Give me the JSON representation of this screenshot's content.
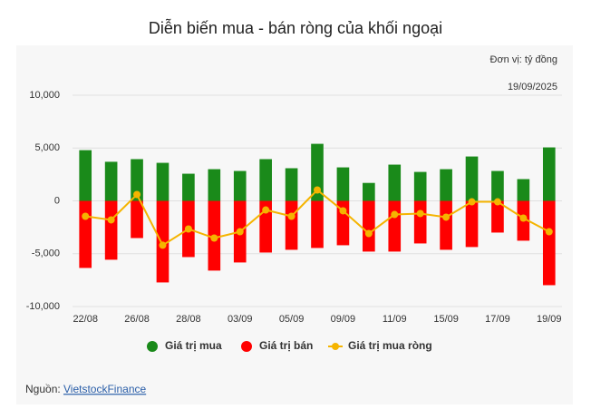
{
  "chart_data": {
    "type": "bar_line",
    "title": "Diễn biến mua - bán ròng của khối ngoại",
    "unit_note": "Đơn vị: tỷ đồng",
    "date_note": "19/09/2025",
    "source_label": "Nguồn:",
    "source_link": "VietstockFinance",
    "categories": [
      "22/08",
      null,
      "26/08",
      null,
      "28/08",
      null,
      "03/09",
      null,
      "05/09",
      null,
      "09/09",
      null,
      "11/09",
      null,
      "15/09",
      null,
      "17/09",
      null,
      "19/09"
    ],
    "series": [
      {
        "name": "Giá trị mua",
        "color": "#1a8a1a",
        "kind": "bar",
        "values": [
          4800,
          3700,
          3950,
          3600,
          2570,
          3000,
          2830,
          3950,
          3090,
          5400,
          3170,
          1700,
          3430,
          2740,
          3000,
          4200,
          2830,
          2060,
          5060
        ]
      },
      {
        "name": "Giá trị bán",
        "color": "#ff0000",
        "kind": "bar",
        "values": [
          -6350,
          -5570,
          -3520,
          -7720,
          -5320,
          -6600,
          -5830,
          -4890,
          -4630,
          -4460,
          -4200,
          -4800,
          -4800,
          -4030,
          -4630,
          -4370,
          -3000,
          -3770,
          -7980
        ]
      },
      {
        "name": "Giá trị mua ròng",
        "color": "#f5b400",
        "kind": "line",
        "values": [
          -1460,
          -1800,
          600,
          -4200,
          -2660,
          -3520,
          -2920,
          -860,
          -1460,
          1030,
          -940,
          -3090,
          -1290,
          -1200,
          -1540,
          -90,
          -90,
          -1630,
          -2920
        ]
      }
    ],
    "ylim": [
      -10000,
      10000
    ],
    "yticks": [
      {
        "value": -10000,
        "label": "-10,000"
      },
      {
        "value": -5000,
        "label": "-5,000"
      },
      0,
      {
        "value": 5000,
        "label": "5,000"
      },
      {
        "value": 10000,
        "label": "10,000"
      }
    ],
    "grid": true
  }
}
